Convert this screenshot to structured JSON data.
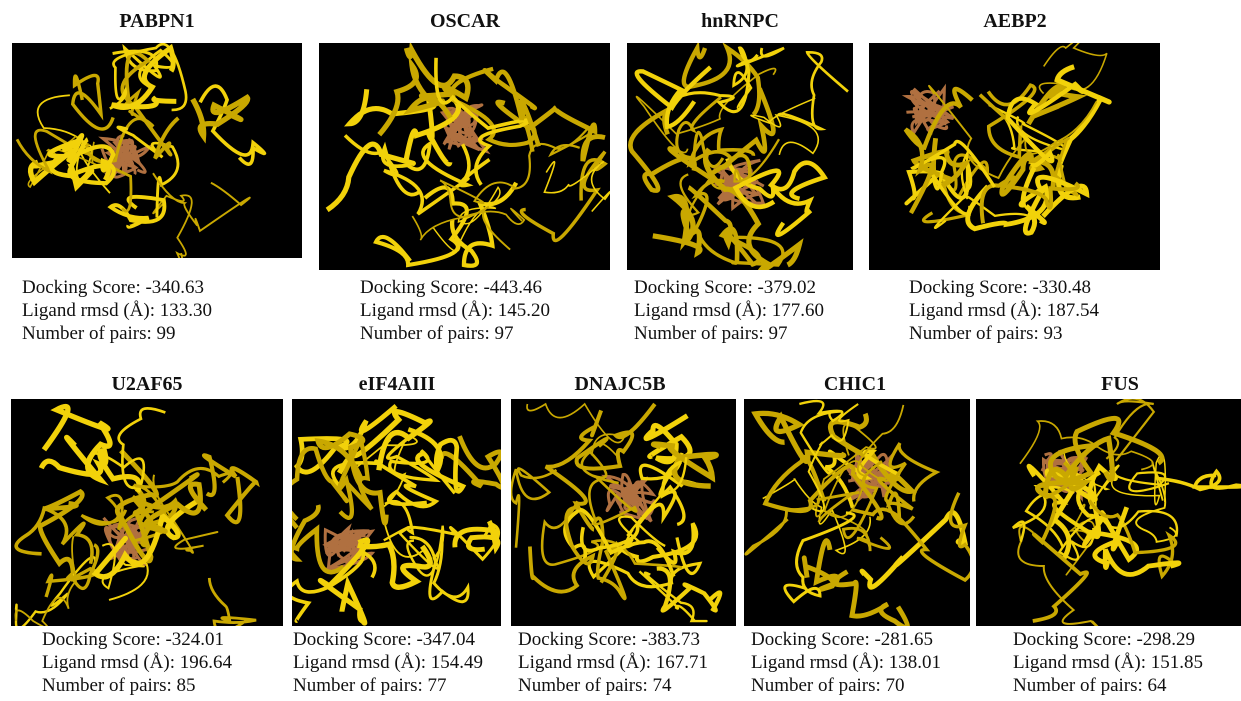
{
  "panels": [
    {
      "title": "PABPN1",
      "lines": [
        "Docking Score: -340.63",
        "Ligand rmsd (Å): 133.30",
        "Number of pairs: 99"
      ]
    },
    {
      "title": "OSCAR",
      "lines": [
        "Docking Score: -443.46",
        "Ligand rmsd (Å): 145.20",
        "Number of pairs: 97"
      ]
    },
    {
      "title": "hnRNPC",
      "lines": [
        "Docking Score: -379.02",
        "Ligand rmsd (Å): 177.60",
        "Number of pairs: 97"
      ]
    },
    {
      "title": "AEBP2",
      "lines": [
        "Docking Score: -330.48",
        "Ligand rmsd (Å): 187.54",
        "Number of pairs: 93"
      ]
    },
    {
      "title": "U2AF65",
      "lines": [
        "Docking Score: -324.01",
        "Ligand rmsd (Å): 196.64",
        "Number of pairs: 85"
      ]
    },
    {
      "title": "eIF4AIII",
      "lines": [
        "Docking Score: -347.04",
        "Ligand rmsd (Å): 154.49",
        "Number of pairs: 77"
      ]
    },
    {
      "title": "DNAJC5B",
      "lines": [
        "Docking Score: -383.73",
        "Ligand rmsd (Å): 167.71",
        "Number of pairs: 74"
      ]
    },
    {
      "title": "CHIC1",
      "lines": [
        "Docking Score: -281.65",
        "Ligand rmsd (Å): 138.01",
        "Number of pairs: 70"
      ]
    },
    {
      "title": "FUS",
      "lines": [
        "Docking Score: -298.29",
        "Ligand rmsd (Å): 151.85",
        "Number of pairs: 64"
      ]
    }
  ]
}
